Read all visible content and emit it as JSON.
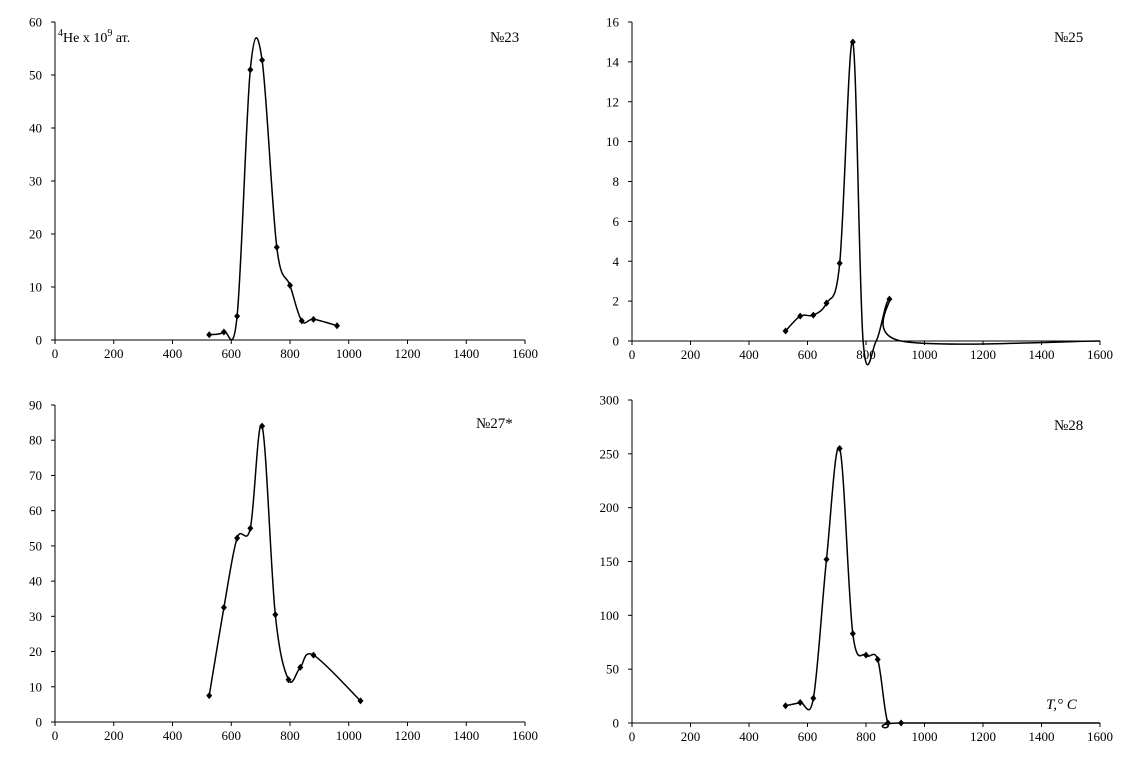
{
  "chart_data": [
    {
      "type": "line",
      "label": "№23",
      "ylabel": {
        "isotope": "4",
        "element": "He x 10",
        "power": "9",
        "unit": " ат."
      },
      "xlim": [
        0,
        1600
      ],
      "ylim": [
        0,
        60
      ],
      "xticks": [
        "0",
        "200",
        "400",
        "600",
        "800",
        "1000",
        "1200",
        "1400",
        "1600"
      ],
      "yticks": [
        "0",
        "10",
        "20",
        "30",
        "40",
        "50",
        "60"
      ],
      "x": [
        525,
        575,
        620,
        665,
        705,
        755,
        800,
        840,
        880,
        960
      ],
      "y": [
        1,
        1.5,
        4.5,
        51,
        52.8,
        17.5,
        10.3,
        3.6,
        3.9,
        2.7
      ]
    },
    {
      "type": "line",
      "label": "№25",
      "xlim": [
        0,
        1600
      ],
      "ylim": [
        0,
        16
      ],
      "xticks": [
        "0",
        "200",
        "400",
        "600",
        "800",
        "1000",
        "1200",
        "1400",
        "1600"
      ],
      "yticks": [
        "0",
        "2",
        "4",
        "6",
        "8",
        "10",
        "12",
        "14",
        "16"
      ],
      "x": [
        525,
        575,
        620,
        665,
        710,
        755,
        790,
        835,
        880,
        920,
        1600
      ],
      "y": [
        0.5,
        1.25,
        1.3,
        1.9,
        3.9,
        15,
        0,
        0,
        2.1,
        0,
        0
      ],
      "markers": [
        true,
        true,
        true,
        true,
        true,
        true,
        false,
        false,
        true,
        false,
        false
      ]
    },
    {
      "type": "line",
      "label": "№27*",
      "xlim": [
        0,
        1600
      ],
      "ylim": [
        0,
        90
      ],
      "xticks": [
        "0",
        "200",
        "400",
        "600",
        "800",
        "1000",
        "1200",
        "1400",
        "1600"
      ],
      "yticks": [
        "0",
        "10",
        "20",
        "30",
        "40",
        "50",
        "60",
        "70",
        "80",
        "90"
      ],
      "x": [
        525,
        575,
        620,
        665,
        705,
        750,
        795,
        835,
        880,
        1040
      ],
      "y": [
        7.5,
        32.5,
        52.2,
        55,
        84,
        30.5,
        12,
        15.5,
        19,
        6
      ]
    },
    {
      "type": "line",
      "label": "№28",
      "xlabel": "T,° C",
      "xlim": [
        0,
        1600
      ],
      "ylim": [
        0,
        300
      ],
      "xticks": [
        "0",
        "200",
        "400",
        "600",
        "800",
        "1000",
        "1200",
        "1400",
        "1600"
      ],
      "yticks": [
        "0",
        "50",
        "100",
        "150",
        "200",
        "250",
        "300"
      ],
      "x": [
        525,
        575,
        620,
        665,
        710,
        755,
        800,
        840,
        875,
        920,
        1600
      ],
      "y": [
        16,
        19,
        23,
        152,
        255,
        83,
        63,
        59,
        0,
        0,
        0
      ],
      "markers": [
        true,
        true,
        true,
        true,
        true,
        true,
        true,
        true,
        true,
        true,
        false
      ]
    }
  ]
}
